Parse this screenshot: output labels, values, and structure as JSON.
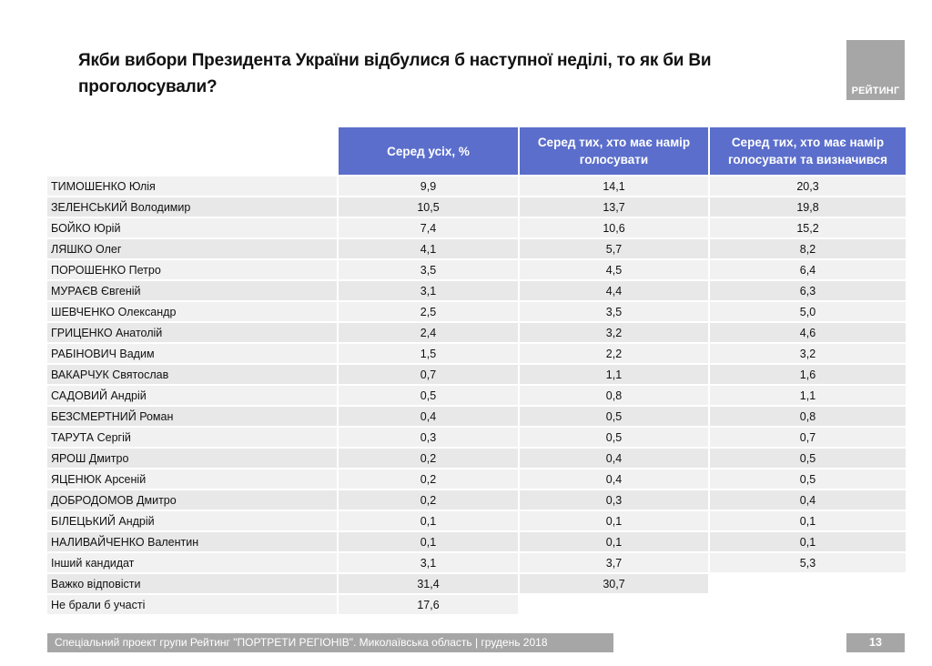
{
  "title": "Якби вибори Президента України відбулися б наступної неділі, то як би Ви проголосували?",
  "logo": {
    "text": "РЕЙТИНГ"
  },
  "table": {
    "headers": [
      "Серед усіх, %",
      "Серед тих, хто має намір голосувати",
      "Серед тих, хто має намір голосувати та визначився"
    ],
    "rows": [
      {
        "name": "ТИМОШЕНКО Юлія",
        "all": "9,9",
        "voters": "14,1",
        "decided": "20,3"
      },
      {
        "name": "ЗЕЛЕНСЬКИЙ Володимир",
        "all": "10,5",
        "voters": "13,7",
        "decided": "19,8"
      },
      {
        "name": "БОЙКО Юрій",
        "all": "7,4",
        "voters": "10,6",
        "decided": "15,2"
      },
      {
        "name": "ЛЯШКО Олег",
        "all": "4,1",
        "voters": "5,7",
        "decided": "8,2"
      },
      {
        "name": "ПОРОШЕНКО Петро",
        "all": "3,5",
        "voters": "4,5",
        "decided": "6,4"
      },
      {
        "name": "МУРАЄВ Євгеній",
        "all": "3,1",
        "voters": "4,4",
        "decided": "6,3"
      },
      {
        "name": "ШЕВЧЕНКО Олександр",
        "all": "2,5",
        "voters": "3,5",
        "decided": "5,0"
      },
      {
        "name": "ГРИЦЕНКО Анатолій",
        "all": "2,4",
        "voters": "3,2",
        "decided": "4,6"
      },
      {
        "name": "РАБІНОВИЧ Вадим",
        "all": "1,5",
        "voters": "2,2",
        "decided": "3,2"
      },
      {
        "name": "ВАКАРЧУК Святослав",
        "all": "0,7",
        "voters": "1,1",
        "decided": "1,6"
      },
      {
        "name": "САДОВИЙ Андрій",
        "all": "0,5",
        "voters": "0,8",
        "decided": "1,1"
      },
      {
        "name": "БЕЗСМЕРТНИЙ Роман",
        "all": "0,4",
        "voters": "0,5",
        "decided": "0,8"
      },
      {
        "name": "ТАРУТА Сергій",
        "all": "0,3",
        "voters": "0,5",
        "decided": "0,7"
      },
      {
        "name": "ЯРОШ Дмитро",
        "all": "0,2",
        "voters": "0,4",
        "decided": "0,5"
      },
      {
        "name": "ЯЦЕНЮК Арсеній",
        "all": "0,2",
        "voters": "0,4",
        "decided": "0,5"
      },
      {
        "name": "ДОБРОДОМОВ Дмитро",
        "all": "0,2",
        "voters": "0,3",
        "decided": "0,4"
      },
      {
        "name": "БІЛЕЦЬКИЙ Андрій",
        "all": "0,1",
        "voters": "0,1",
        "decided": "0,1"
      },
      {
        "name": "НАЛИВАЙЧЕНКО Валентин",
        "all": "0,1",
        "voters": "0,1",
        "decided": "0,1"
      },
      {
        "name": "Інший кандидат",
        "all": "3,1",
        "voters": "3,7",
        "decided": "5,3"
      },
      {
        "name": "Важко відповісти",
        "all": "31,4",
        "voters": "30,7",
        "decided": ""
      },
      {
        "name": "Не брали б участі",
        "all": "17,6",
        "voters": "",
        "decided": ""
      }
    ]
  },
  "footer": {
    "text": "Спеціальний проект групи Рейтинг \"ПОРТРЕТИ РЕГІОНІВ\". Миколаївська область | грудень 2018",
    "page": "13"
  }
}
